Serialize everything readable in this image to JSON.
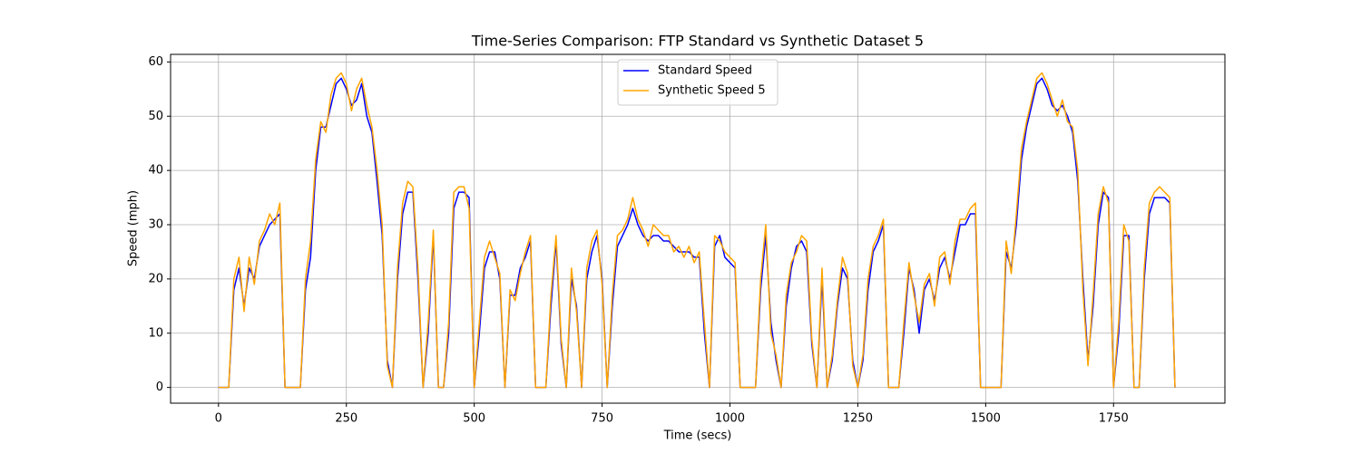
{
  "chart_data": {
    "type": "line",
    "title": "Time-Series Comparison: FTP Standard vs Synthetic Dataset 5",
    "xlabel": "Time (secs)",
    "ylabel": "Speed (mph)",
    "x": [
      0,
      10,
      20,
      30,
      40,
      50,
      60,
      70,
      80,
      90,
      100,
      110,
      120,
      130,
      140,
      150,
      160,
      170,
      180,
      190,
      200,
      210,
      220,
      230,
      240,
      250,
      260,
      270,
      280,
      290,
      300,
      310,
      320,
      330,
      340,
      350,
      360,
      370,
      380,
      390,
      400,
      410,
      420,
      430,
      440,
      450,
      460,
      470,
      480,
      490,
      500,
      510,
      520,
      530,
      540,
      550,
      560,
      570,
      580,
      590,
      600,
      610,
      620,
      630,
      640,
      650,
      660,
      670,
      680,
      690,
      700,
      710,
      720,
      730,
      740,
      750,
      760,
      770,
      780,
      790,
      800,
      810,
      820,
      830,
      840,
      850,
      860,
      870,
      880,
      890,
      900,
      910,
      920,
      930,
      940,
      950,
      960,
      970,
      980,
      990,
      1000,
      1010,
      1020,
      1030,
      1040,
      1050,
      1060,
      1070,
      1080,
      1090,
      1100,
      1110,
      1120,
      1130,
      1140,
      1150,
      1160,
      1170,
      1180,
      1190,
      1200,
      1210,
      1220,
      1230,
      1240,
      1250,
      1260,
      1270,
      1280,
      1290,
      1300,
      1310,
      1320,
      1330,
      1340,
      1350,
      1360,
      1370,
      1380,
      1390,
      1400,
      1410,
      1420,
      1430,
      1440,
      1450,
      1460,
      1470,
      1480,
      1490,
      1500,
      1510,
      1520,
      1530,
      1540,
      1550,
      1560,
      1570,
      1580,
      1590,
      1600,
      1610,
      1620,
      1630,
      1640,
      1650,
      1660,
      1670,
      1680,
      1690,
      1700,
      1710,
      1720,
      1730,
      1740,
      1750,
      1760,
      1770,
      1780,
      1790,
      1800,
      1810,
      1820,
      1830,
      1840,
      1850,
      1860,
      1870
    ],
    "series": [
      {
        "name": "Standard Speed",
        "color": "#0000ff",
        "values": [
          0,
          0,
          0,
          18,
          22,
          15,
          22,
          20,
          26,
          28,
          30,
          31,
          32,
          0,
          0,
          0,
          0,
          18,
          24,
          40,
          48,
          48,
          52,
          56,
          57,
          55,
          52,
          53,
          56,
          50,
          47,
          38,
          28,
          5,
          0,
          20,
          32,
          36,
          36,
          20,
          0,
          10,
          28,
          0,
          0,
          10,
          33,
          36,
          36,
          35,
          0,
          10,
          22,
          25,
          25,
          20,
          0,
          17,
          17,
          22,
          24,
          27,
          0,
          0,
          0,
          15,
          27,
          8,
          0,
          20,
          15,
          0,
          20,
          25,
          28,
          20,
          0,
          15,
          26,
          28,
          30,
          33,
          30,
          28,
          27,
          28,
          28,
          27,
          27,
          26,
          25,
          25,
          25,
          24,
          24,
          10,
          0,
          26,
          28,
          24,
          23,
          22,
          0,
          0,
          0,
          0,
          18,
          28,
          12,
          5,
          0,
          15,
          22,
          26,
          27,
          25,
          8,
          0,
          20,
          0,
          5,
          15,
          22,
          20,
          5,
          0,
          5,
          18,
          25,
          27,
          30,
          0,
          0,
          0,
          10,
          22,
          18,
          10,
          18,
          20,
          16,
          22,
          24,
          20,
          25,
          30,
          30,
          32,
          32,
          0,
          0,
          0,
          0,
          0,
          25,
          22,
          30,
          42,
          48,
          52,
          56,
          57,
          55,
          52,
          51,
          52,
          50,
          47,
          38,
          20,
          5,
          15,
          30,
          36,
          35,
          0,
          10,
          28,
          28,
          0,
          0,
          20,
          32,
          35,
          35,
          35,
          34,
          0
        ]
      },
      {
        "name": "Synthetic Speed 5",
        "color": "#ffa500",
        "values": [
          0,
          0,
          0,
          20,
          24,
          14,
          24,
          19,
          27,
          29,
          32,
          30,
          34,
          0,
          0,
          0,
          0,
          20,
          27,
          42,
          49,
          47,
          54,
          57,
          58,
          56,
          51,
          55,
          57,
          52,
          48,
          40,
          30,
          4,
          0,
          22,
          34,
          38,
          37,
          22,
          0,
          12,
          29,
          0,
          0,
          12,
          36,
          37,
          37,
          33,
          0,
          12,
          24,
          27,
          24,
          21,
          0,
          18,
          16,
          21,
          25,
          28,
          0,
          0,
          0,
          17,
          28,
          9,
          0,
          22,
          14,
          0,
          22,
          27,
          29,
          19,
          0,
          17,
          28,
          29,
          31,
          35,
          31,
          29,
          26,
          30,
          29,
          28,
          28,
          25,
          26,
          24,
          26,
          23,
          25,
          12,
          0,
          28,
          27,
          25,
          24,
          23,
          0,
          0,
          0,
          0,
          20,
          30,
          10,
          6,
          0,
          17,
          23,
          25,
          28,
          27,
          9,
          0,
          22,
          0,
          6,
          16,
          24,
          21,
          4,
          0,
          6,
          20,
          26,
          28,
          31,
          0,
          0,
          0,
          12,
          23,
          17,
          12,
          19,
          21,
          15,
          24,
          25,
          19,
          27,
          31,
          31,
          33,
          34,
          0,
          0,
          0,
          0,
          0,
          27,
          21,
          32,
          44,
          49,
          53,
          57,
          58,
          56,
          53,
          50,
          53,
          49,
          48,
          40,
          18,
          4,
          17,
          32,
          37,
          34,
          0,
          12,
          30,
          27,
          0,
          0,
          22,
          34,
          36,
          37,
          36,
          35,
          0
        ]
      }
    ],
    "xlim": [
      -93.7,
      1967.7
    ],
    "ylim": [
      -2.9,
      61.4
    ],
    "xticks": [
      0,
      250,
      500,
      750,
      1000,
      1250,
      1500,
      1750
    ],
    "yticks": [
      0,
      10,
      20,
      30,
      40,
      50,
      60
    ],
    "grid": true,
    "legend": "upper center"
  }
}
